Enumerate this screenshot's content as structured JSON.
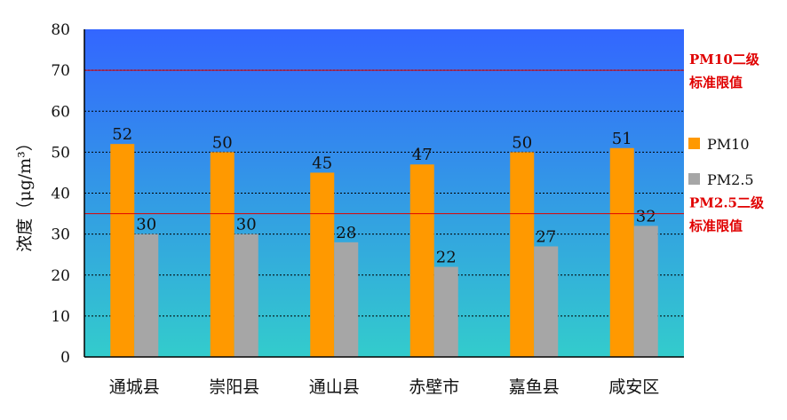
{
  "chart_data": {
    "type": "bar",
    "title": "",
    "xlabel": "",
    "ylabel": "浓度（μg/m³）",
    "ylim": [
      0,
      80
    ],
    "yticks": [
      0,
      10,
      20,
      30,
      40,
      50,
      60,
      70,
      80
    ],
    "grid": true,
    "legend_position": "right",
    "categories": [
      "通城县",
      "崇阳县",
      "通山县",
      "赤壁市",
      "嘉鱼县",
      "咸安区"
    ],
    "series": [
      {
        "name": "PM10",
        "color": "#FF9900",
        "values": [
          52,
          50,
          45,
          47,
          50,
          51
        ]
      },
      {
        "name": "PM2.5",
        "color": "#A6A6A6",
        "values": [
          30,
          30,
          28,
          22,
          27,
          32
        ]
      }
    ],
    "reference_lines": [
      {
        "value": 70,
        "label_line1": "PM10二级",
        "label_line2": "标准限值",
        "color": "#E00000"
      },
      {
        "value": 35,
        "label_line1": "PM2.5二级",
        "label_line2": "标准限值",
        "color": "#E00000"
      }
    ],
    "background_gradient": [
      "#3366FF",
      "#33CCCC"
    ]
  }
}
